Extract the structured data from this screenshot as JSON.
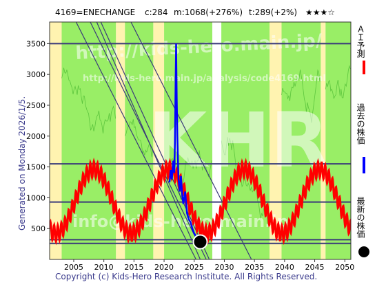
{
  "header": {
    "ticker": "4169=ENECHANGE",
    "current": "c:284",
    "max": "m:1068(+276%)",
    "target": "t:289(+2%)",
    "rating": "★★★☆"
  },
  "side_note": "Generated on Monday 2026/1/5.",
  "footer": "Copyright (c) Kids-Hero Research Institute. All Rights Reserved.",
  "watermarks": [
    "http://kids-hero.main.jp/",
    "http://kids-hero.main.jp/analysis/code4169.html",
    "KHR",
    "info@kids-hero.main.jp"
  ],
  "legend": {
    "ai_forecast": "ＡＩ予測",
    "past_price": "過去の株価",
    "latest_price": "最新の株価"
  },
  "colors": {
    "ai_forecast": "#ff0000",
    "past_price": "#0000ff",
    "latest_price": "#000000",
    "bg_green": "#99ee66",
    "bg_yellow": "#fff3b0",
    "trend_lines": "#3a3a7a",
    "text_blue": "#3a3a8c"
  },
  "chart_data": {
    "type": "line",
    "x_range": [
      2001,
      2051
    ],
    "ylim": [
      0,
      3850
    ],
    "x_ticks": [
      2005,
      2010,
      2015,
      2020,
      2025,
      2030,
      2035,
      2040,
      2045,
      2050
    ],
    "y_ticks": [
      500,
      1000,
      1500,
      2000,
      2500,
      3000,
      3500
    ],
    "grid": false,
    "legend_position": "right",
    "horizontal_levels": [
      3500,
      1550,
      930,
      320,
      260
    ],
    "past_price": {
      "x": [
        2020.9,
        2021.1,
        2021.3,
        2021.5,
        2021.7,
        2021.8,
        2021.9,
        2022.0,
        2022.1,
        2022.2,
        2022.3,
        2022.4,
        2022.6,
        2022.8,
        2023.0,
        2023.2,
        2023.5,
        2023.8,
        2024.1,
        2024.4,
        2024.7,
        2025.0,
        2025.3,
        2025.6,
        2025.9
      ],
      "y": [
        1250,
        1450,
        1300,
        1600,
        1400,
        1900,
        2800,
        3500,
        2600,
        2000,
        1600,
        1300,
        1100,
        1350,
        1050,
        900,
        1100,
        750,
        650,
        600,
        500,
        420,
        380,
        330,
        300
      ]
    },
    "ai_forecast": {
      "base_mid": 940,
      "amplitude": 520,
      "period_years": 12.5,
      "ripple_amplitude": 130,
      "ripple_period_years": 0.6
    },
    "latest_price": {
      "x": 2026.0,
      "y": 284
    },
    "trend_lines": [
      {
        "x": [
          2001,
          2027.0
        ],
        "y": [
          5200,
          0
        ]
      },
      {
        "x": [
          2001,
          2026.0
        ],
        "y": [
          5600,
          0
        ]
      },
      {
        "x": [
          2001,
          2025.3
        ],
        "y": [
          4700,
          0
        ]
      },
      {
        "x": [
          2009.5,
          2027.5
        ],
        "y": [
          3850,
          0
        ]
      },
      {
        "x": [
          2014.5,
          2034.5
        ],
        "y": [
          3850,
          0
        ]
      }
    ],
    "green_bands": [
      [
        2003.0,
        2012.0
      ],
      [
        2013.5,
        2018.2
      ],
      [
        2020.0,
        2028.0
      ],
      [
        2029.5,
        2037.5
      ],
      [
        2039.5,
        2046.0
      ],
      [
        2046.8,
        2051.0
      ]
    ],
    "yellow_bands": [
      [
        2001.0,
        2003.0
      ],
      [
        2012.0,
        2013.5
      ],
      [
        2018.2,
        2020.0
      ],
      [
        2037.5,
        2039.5
      ],
      [
        2046.0,
        2046.8
      ]
    ]
  }
}
